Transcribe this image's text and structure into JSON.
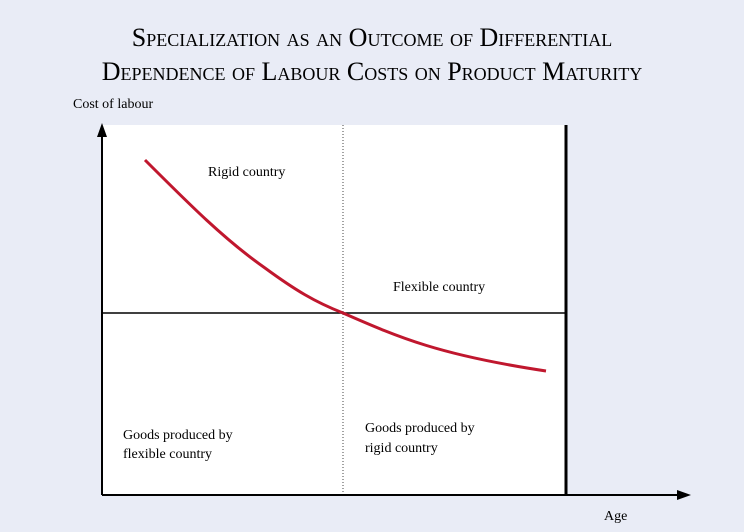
{
  "title": [
    "Specialization as an Outcome of Differential",
    "Dependence of Labour Costs on Product Maturity"
  ],
  "y_axis_label": "Cost of labour",
  "x_axis_label": "Age",
  "curve_labels": {
    "upper": "Rigid country",
    "lower": "Flexible country"
  },
  "regions": {
    "left": [
      "Goods produced by",
      "flexible country"
    ],
    "right": [
      "Goods produced by",
      "rigid country"
    ]
  }
}
